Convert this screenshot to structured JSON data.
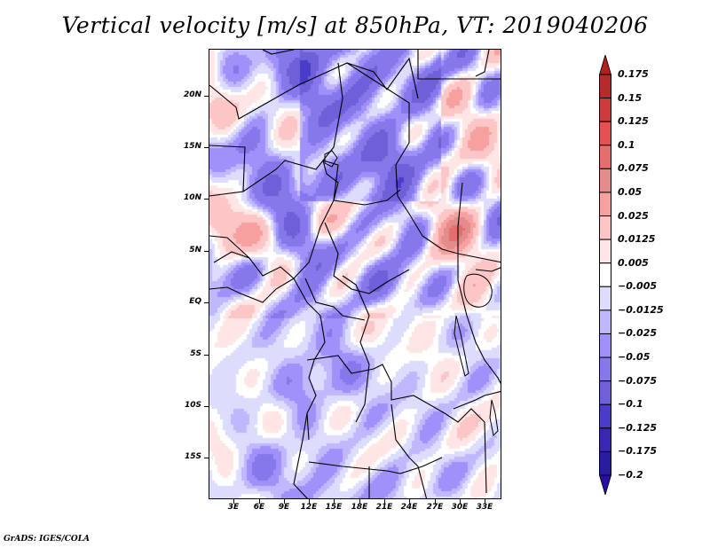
{
  "title": "Vertical velocity [m/s] at 850hPa, VT: 2019040206",
  "footer": "GrADS: IGES/COLA",
  "map": {
    "variable": "Vertical velocity",
    "units": "m/s",
    "level": "850hPa",
    "valid_time": "2019040206",
    "lon_range": [
      0,
      35
    ],
    "lat_range": [
      -19,
      24.5
    ],
    "y_axis": {
      "ticks": [
        {
          "label": "20N",
          "lat": 20
        },
        {
          "label": "15N",
          "lat": 15
        },
        {
          "label": "10N",
          "lat": 10
        },
        {
          "label": "5N",
          "lat": 5
        },
        {
          "label": "EQ",
          "lat": 0
        },
        {
          "label": "5S",
          "lat": -5
        },
        {
          "label": "10S",
          "lat": -10
        },
        {
          "label": "15S",
          "lat": -15
        }
      ]
    },
    "x_axis": {
      "ticks": [
        {
          "label": "3E",
          "lon": 3
        },
        {
          "label": "6E",
          "lon": 6
        },
        {
          "label": "9E",
          "lon": 9
        },
        {
          "label": "12E",
          "lon": 12
        },
        {
          "label": "15E",
          "lon": 15
        },
        {
          "label": "18E",
          "lon": 18
        },
        {
          "label": "21E",
          "lon": 21
        },
        {
          "label": "24E",
          "lon": 24
        },
        {
          "label": "27E",
          "lon": 27
        },
        {
          "label": "30E",
          "lon": 30
        },
        {
          "label": "33E",
          "lon": 33
        }
      ]
    }
  },
  "colorbar": {
    "top_arrow_color": "#b02020",
    "bottom_arrow_color": "#2a0fa0",
    "labels": [
      "0.175",
      "0.15",
      "0.125",
      "0.1",
      "0.075",
      "0.05",
      "0.025",
      "0.0125",
      "0.005",
      "-0.005",
      "-0.0125",
      "-0.025",
      "-0.05",
      "-0.075",
      "-0.1",
      "-0.125",
      "-0.175",
      "-0.2"
    ],
    "colors": [
      "#b52a2a",
      "#cc3c3c",
      "#e25252",
      "#e46e6e",
      "#e48c8c",
      "#f6a0a0",
      "#fcc6c6",
      "#ffe6e6",
      "#ffffff",
      "#dcdcfc",
      "#c0b8fc",
      "#a090fa",
      "#8478ea",
      "#6e60d8",
      "#4a3cc8",
      "#3a28b4",
      "#2a1ca0"
    ]
  }
}
